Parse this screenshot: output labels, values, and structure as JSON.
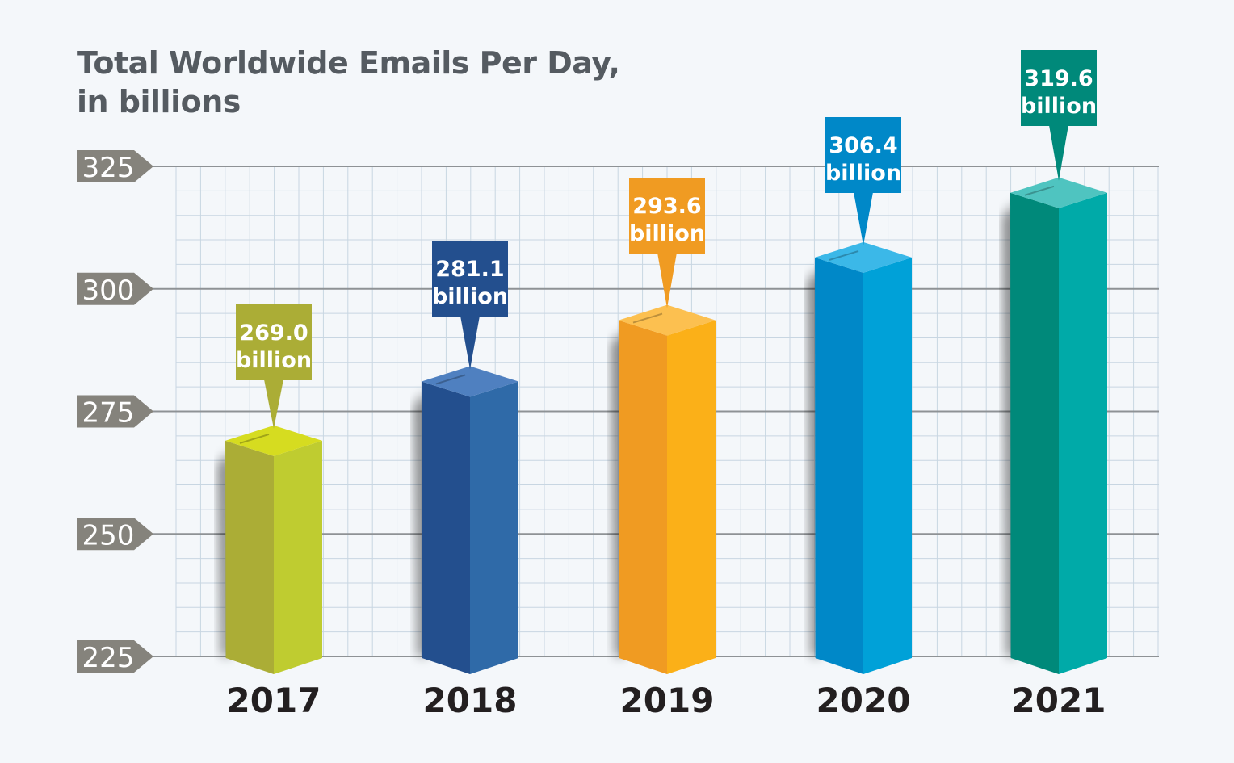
{
  "chart_data": {
    "type": "bar",
    "title_lines": [
      "Total Worldwide Emails Per Day,",
      "in billions"
    ],
    "categories": [
      "2017",
      "2018",
      "2019",
      "2020",
      "2021"
    ],
    "values": [
      269.0,
      281.1,
      293.6,
      306.4,
      319.6
    ],
    "value_labels": [
      "269.0",
      "281.1",
      "293.6",
      "306.4",
      "319.6"
    ],
    "unit_label": "billion",
    "yticks": [
      "225",
      "250",
      "275",
      "300",
      "325"
    ],
    "ylim": [
      225,
      325
    ],
    "grid": true,
    "colors": {
      "2017": {
        "left": "#abad36",
        "right": "#bfcc30",
        "top": "#d6dc20",
        "callout": "#abad36"
      },
      "2018": {
        "left": "#234f8e",
        "right": "#2f6aa8",
        "top": "#4f80c0",
        "callout": "#234f8e"
      },
      "2019": {
        "left": "#f09b22",
        "right": "#fbb018",
        "top": "#fcc050",
        "callout": "#f09b22"
      },
      "2020": {
        "left": "#0088c8",
        "right": "#00a1d8",
        "top": "#3bb8e8",
        "callout": "#0088c8"
      },
      "2021": {
        "left": "#00897a",
        "right": "#00aaa8",
        "top": "#4fc4c0",
        "callout": "#00897a"
      }
    },
    "axis_label_bg": "#85837c",
    "text_color": "#555b61"
  }
}
